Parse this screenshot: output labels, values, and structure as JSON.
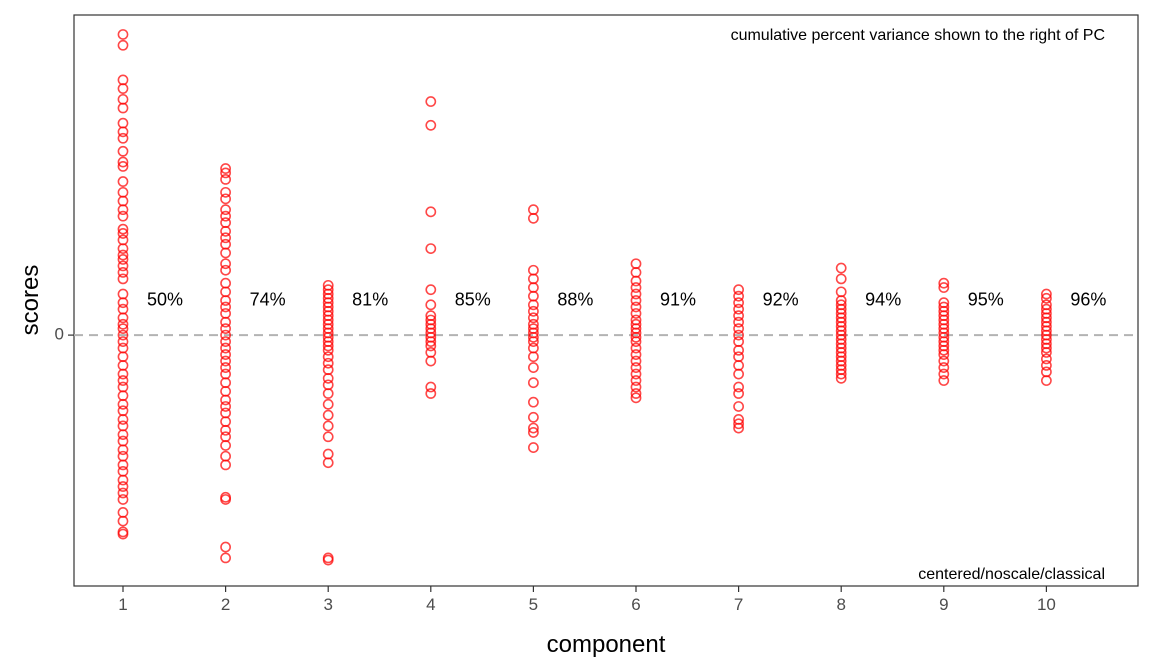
{
  "chart_data": {
    "type": "scatter",
    "xlabel": "component",
    "ylabel": "scores",
    "ylim": [
      -1.16,
      1.48
    ],
    "y_ticks": [
      0
    ],
    "y_tick_labels": [
      "0"
    ],
    "x_ticks": [
      1,
      2,
      3,
      4,
      5,
      6,
      7,
      8,
      9,
      10
    ],
    "x_tick_labels": [
      "1",
      "2",
      "3",
      "4",
      "5",
      "6",
      "7",
      "8",
      "9",
      "10"
    ],
    "reference_line_y": 0,
    "annotation_top": "cumulative percent variance shown to the right of PC",
    "annotation_bottom": "centered/noscale/classical",
    "grid": false,
    "marker": "open-circle",
    "marker_color": "#ff0000",
    "reference_line_color": "#b3b3b3",
    "series": [
      {
        "component": 1,
        "cumulative_percent": "50%",
        "scores": [
          1.39,
          1.34,
          1.18,
          1.14,
          1.09,
          1.05,
          0.98,
          0.94,
          0.91,
          0.85,
          0.8,
          0.78,
          0.71,
          0.66,
          0.62,
          0.58,
          0.55,
          0.49,
          0.47,
          0.44,
          0.4,
          0.37,
          0.35,
          0.32,
          0.29,
          0.26,
          0.19,
          0.15,
          0.12,
          0.08,
          0.05,
          0.03,
          0.0,
          -0.03,
          -0.06,
          -0.1,
          -0.14,
          -0.18,
          -0.21,
          -0.24,
          -0.28,
          -0.32,
          -0.35,
          -0.39,
          -0.42,
          -0.46,
          -0.49,
          -0.53,
          -0.56,
          -0.6,
          -0.63,
          -0.67,
          -0.7,
          -0.73,
          -0.76,
          -0.82,
          -0.86,
          -0.91,
          -0.92
        ]
      },
      {
        "component": 2,
        "cumulative_percent": "74%",
        "scores": [
          0.77,
          0.75,
          0.72,
          0.66,
          0.63,
          0.58,
          0.55,
          0.52,
          0.48,
          0.45,
          0.42,
          0.38,
          0.33,
          0.3,
          0.24,
          0.2,
          0.16,
          0.13,
          0.1,
          0.06,
          0.03,
          0.0,
          -0.03,
          -0.06,
          -0.09,
          -0.12,
          -0.15,
          -0.18,
          -0.22,
          -0.26,
          -0.3,
          -0.33,
          -0.36,
          -0.4,
          -0.44,
          -0.47,
          -0.51,
          -0.56,
          -0.6,
          -0.75,
          -0.76,
          -0.98,
          -1.03
        ]
      },
      {
        "component": 3,
        "cumulative_percent": "81%",
        "scores": [
          0.23,
          0.21,
          0.19,
          0.17,
          0.15,
          0.13,
          0.11,
          0.09,
          0.07,
          0.05,
          0.03,
          0.01,
          -0.01,
          -0.03,
          -0.05,
          -0.07,
          -0.1,
          -0.13,
          -0.16,
          -0.2,
          -0.23,
          -0.27,
          -0.32,
          -0.37,
          -0.42,
          -0.47,
          -0.55,
          -0.59,
          -1.03,
          -1.04
        ]
      },
      {
        "component": 4,
        "cumulative_percent": "85%",
        "scores": [
          1.08,
          0.97,
          0.57,
          0.4,
          0.21,
          0.14,
          0.09,
          0.07,
          0.05,
          0.03,
          0.01,
          -0.01,
          -0.03,
          -0.05,
          -0.08,
          -0.12,
          -0.24,
          -0.27
        ]
      },
      {
        "component": 5,
        "cumulative_percent": "88%",
        "scores": [
          0.58,
          0.54,
          0.3,
          0.26,
          0.22,
          0.18,
          0.14,
          0.11,
          0.08,
          0.05,
          0.03,
          0.01,
          -0.01,
          -0.03,
          -0.06,
          -0.1,
          -0.15,
          -0.22,
          -0.31,
          -0.38,
          -0.43,
          -0.45,
          -0.52
        ]
      },
      {
        "component": 6,
        "cumulative_percent": "91%",
        "scores": [
          0.33,
          0.29,
          0.25,
          0.22,
          0.19,
          0.16,
          0.13,
          0.1,
          0.07,
          0.05,
          0.03,
          0.01,
          -0.01,
          -0.03,
          -0.06,
          -0.09,
          -0.12,
          -0.15,
          -0.18,
          -0.21,
          -0.24,
          -0.27,
          -0.29
        ]
      },
      {
        "component": 7,
        "cumulative_percent": "92%",
        "scores": [
          0.21,
          0.18,
          0.15,
          0.12,
          0.09,
          0.06,
          0.03,
          0.0,
          -0.03,
          -0.07,
          -0.1,
          -0.14,
          -0.18,
          -0.24,
          -0.27,
          -0.33,
          -0.39,
          -0.41,
          -0.43
        ]
      },
      {
        "component": 8,
        "cumulative_percent": "94%",
        "scores": [
          0.31,
          0.26,
          0.2,
          0.16,
          0.14,
          0.12,
          0.1,
          0.08,
          0.06,
          0.04,
          0.02,
          0.0,
          -0.02,
          -0.04,
          -0.06,
          -0.08,
          -0.1,
          -0.12,
          -0.14,
          -0.16,
          -0.18,
          -0.2
        ]
      },
      {
        "component": 9,
        "cumulative_percent": "95%",
        "scores": [
          0.24,
          0.22,
          0.15,
          0.13,
          0.11,
          0.09,
          0.07,
          0.05,
          0.03,
          0.01,
          -0.01,
          -0.03,
          -0.05,
          -0.07,
          -0.09,
          -0.12,
          -0.15,
          -0.18,
          -0.21
        ]
      },
      {
        "component": 10,
        "cumulative_percent": "96%",
        "scores": [
          0.19,
          0.17,
          0.14,
          0.12,
          0.1,
          0.08,
          0.06,
          0.04,
          0.02,
          0.0,
          -0.02,
          -0.04,
          -0.06,
          -0.08,
          -0.11,
          -0.14,
          -0.17,
          -0.21
        ]
      }
    ]
  }
}
